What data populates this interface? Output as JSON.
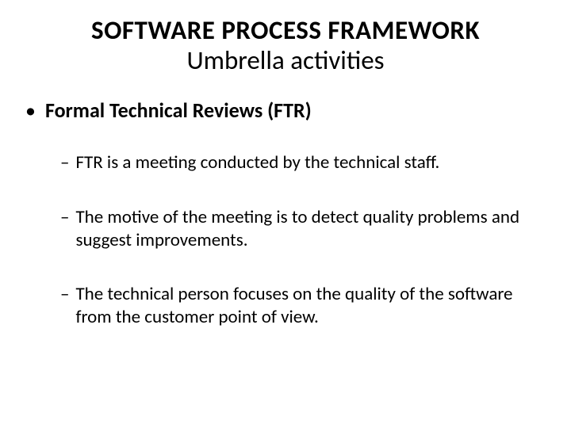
{
  "slide": {
    "title_line1": "SOFTWARE PROCESS FRAMEWORK",
    "title_line2": "Umbrella activities",
    "main_bullet": {
      "marker": "•",
      "text": "Formal Technical Reviews (FTR)"
    },
    "sub_bullets": [
      {
        "marker": "–",
        "text": "FTR is a meeting conducted by the technical staff."
      },
      {
        "marker": "–",
        "text": "The motive of the meeting is to detect quality problems and suggest improvements."
      },
      {
        "marker": "–",
        "text": "The technical person focuses on the quality of the software from the customer point of view."
      }
    ]
  },
  "styling": {
    "background_color": "#ffffff",
    "text_color": "#000000",
    "title_fontsize": 33,
    "title_line1_weight": 700,
    "title_line2_weight": 400,
    "level1_fontsize": 26,
    "level1_weight": 700,
    "level2_fontsize": 23,
    "level2_weight": 400,
    "font_family": "Calibri"
  }
}
